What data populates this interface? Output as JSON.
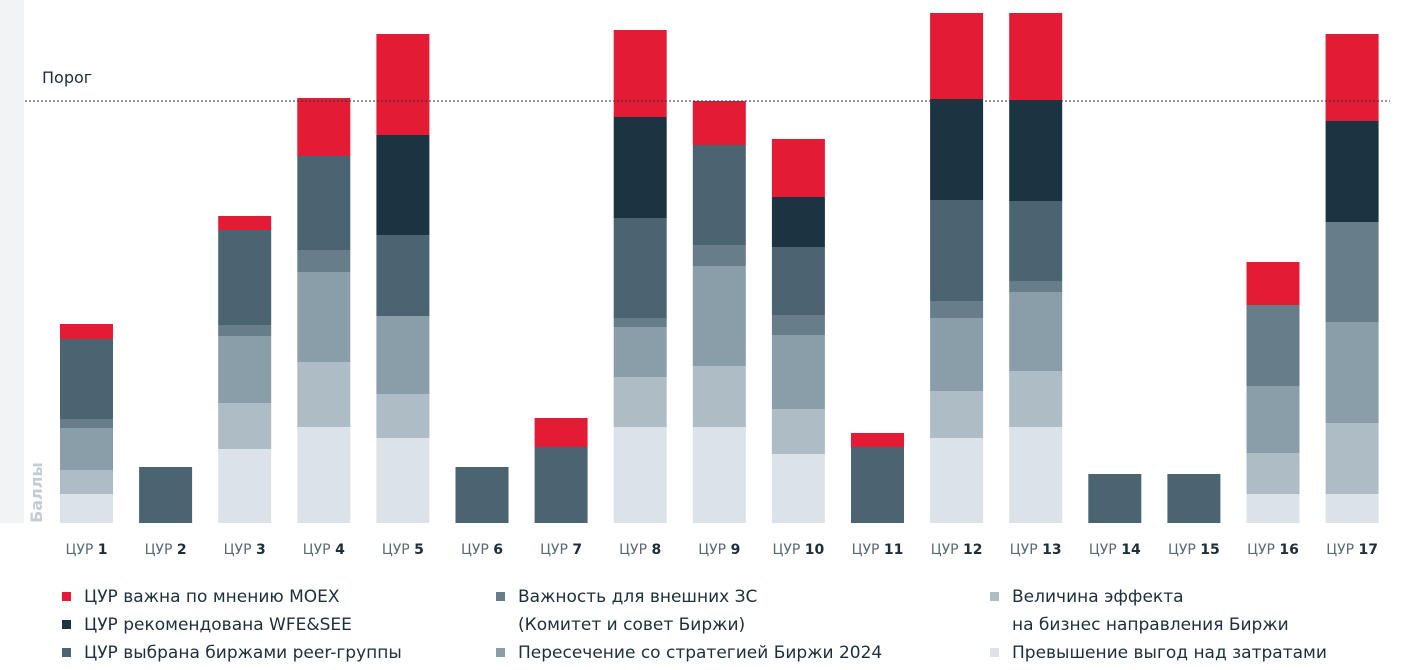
{
  "chart_data": {
    "type": "stacked_bar",
    "y_label": "Баллы",
    "category_prefix": "ЦУР",
    "categories": [
      "1",
      "2",
      "3",
      "4",
      "5",
      "6",
      "7",
      "8",
      "9",
      "10",
      "11",
      "12",
      "13",
      "14",
      "15",
      "16",
      "17"
    ],
    "threshold": {
      "label": "Порог",
      "value": 42.2
    },
    "ylim": [
      0,
      51
    ],
    "series": [
      {
        "name": "ЦУР важна по мнению MOEX",
        "color": "#e31b35",
        "values": [
          1.5,
          0,
          1.4,
          5.8,
          10.1,
          0,
          2.9,
          8.7,
          4.4,
          5.8,
          1.4,
          8.6,
          8.7,
          0,
          0,
          4.3,
          8.7
        ]
      },
      {
        "name": "ЦУР рекомендована  WFE&SEE",
        "color": "#1a3441",
        "values": [
          0,
          0,
          0,
          0,
          10,
          0,
          0,
          10.1,
          0,
          5,
          0,
          10.1,
          10.1,
          0,
          0,
          0,
          10.1
        ]
      },
      {
        "name": "ЦУР выбрана биржами peer-группы",
        "color": "#4b6472",
        "values": [
          8,
          5.6,
          9.5,
          9.4,
          8.1,
          5.6,
          7.6,
          10,
          10,
          6.8,
          7.6,
          10.1,
          8,
          4.9,
          4.9,
          0,
          0
        ]
      },
      {
        "name": "Важность для внешних ЗС\n(Комитет и совет Биржи)",
        "color": "#677d8a",
        "values": [
          0.9,
          0,
          1.1,
          2.2,
          0,
          0,
          0,
          0.9,
          2.1,
          2,
          0,
          1.7,
          1.1,
          0,
          0,
          8.1,
          10
        ]
      },
      {
        "name": "Пересечение со стратегией Биржи 2024",
        "color": "#8a9ea9",
        "values": [
          4.2,
          0,
          6.7,
          9,
          7.8,
          0,
          0,
          5,
          10,
          7.4,
          0,
          7.3,
          7.9,
          0,
          0,
          6.7,
          10.1
        ]
      },
      {
        "name": "Величина эффекта\nна бизнес направления Биржи",
        "color": "#adbcc5",
        "values": [
          2.4,
          0,
          4.6,
          6.5,
          4.4,
          0,
          0,
          5,
          6.1,
          4.5,
          0,
          4.7,
          5.6,
          0,
          0,
          4.1,
          7.1
        ]
      },
      {
        "name": "Превышение выгод над затратами",
        "color": "#dce3e8",
        "values": [
          2.9,
          0,
          7.4,
          9.6,
          8.5,
          0,
          0,
          9.6,
          9.6,
          6.9,
          0,
          8.5,
          9.6,
          0,
          0,
          2.9,
          2.9
        ]
      }
    ]
  }
}
